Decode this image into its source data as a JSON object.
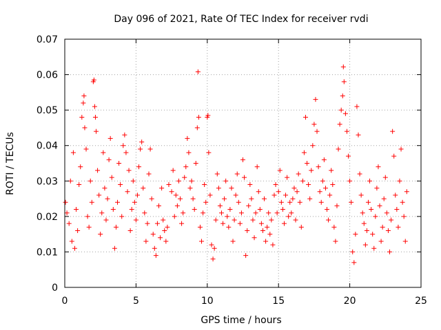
{
  "chart_data": {
    "type": "scatter",
    "title": "Day 096 of 2021, Rate Of TEC Index for receiver rvdi",
    "xlabel": "GPS time / hours",
    "ylabel": "ROTI / TECUs",
    "xlim": [
      0,
      25
    ],
    "ylim": [
      0,
      0.07
    ],
    "x_ticks": [
      "0",
      "5",
      "10",
      "15",
      "20",
      "25"
    ],
    "y_ticks": [
      "0",
      "0.01",
      "0.02",
      "0.03",
      "0.04",
      "0.05",
      "0.06",
      "0.07"
    ],
    "grid": true,
    "marker": "+",
    "color": "#ff0000",
    "series": [
      {
        "name": "ROTI",
        "points": [
          [
            0.05,
            0.024
          ],
          [
            0.15,
            0.021
          ],
          [
            0.3,
            0.018
          ],
          [
            0.4,
            0.03
          ],
          [
            0.5,
            0.013
          ],
          [
            0.6,
            0.038
          ],
          [
            0.7,
            0.011
          ],
          [
            0.8,
            0.022
          ],
          [
            0.9,
            0.016
          ],
          [
            1.0,
            0.029
          ],
          [
            1.1,
            0.034
          ],
          [
            1.2,
            0.048
          ],
          [
            1.3,
            0.052
          ],
          [
            1.35,
            0.054
          ],
          [
            1.4,
            0.045
          ],
          [
            1.5,
            0.039
          ],
          [
            1.6,
            0.02
          ],
          [
            1.7,
            0.017
          ],
          [
            1.8,
            0.03
          ],
          [
            1.9,
            0.024
          ],
          [
            2.0,
            0.058
          ],
          [
            2.05,
            0.0585
          ],
          [
            2.1,
            0.051
          ],
          [
            2.15,
            0.048
          ],
          [
            2.2,
            0.044
          ],
          [
            2.3,
            0.033
          ],
          [
            2.4,
            0.026
          ],
          [
            2.5,
            0.015
          ],
          [
            2.6,
            0.021
          ],
          [
            2.7,
            0.038
          ],
          [
            2.8,
            0.028
          ],
          [
            2.9,
            0.019
          ],
          [
            3.0,
            0.025
          ],
          [
            3.1,
            0.036
          ],
          [
            3.2,
            0.042
          ],
          [
            3.3,
            0.031
          ],
          [
            3.4,
            0.022
          ],
          [
            3.5,
            0.011
          ],
          [
            3.6,
            0.017
          ],
          [
            3.7,
            0.024
          ],
          [
            3.8,
            0.035
          ],
          [
            3.9,
            0.029
          ],
          [
            4.0,
            0.02
          ],
          [
            4.1,
            0.04
          ],
          [
            4.2,
            0.043
          ],
          [
            4.3,
            0.038
          ],
          [
            4.4,
            0.027
          ],
          [
            4.5,
            0.033
          ],
          [
            4.6,
            0.016
          ],
          [
            4.7,
            0.022
          ],
          [
            4.8,
            0.03
          ],
          [
            4.9,
            0.024
          ],
          [
            5.0,
            0.019
          ],
          [
            5.1,
            0.026
          ],
          [
            5.2,
            0.034
          ],
          [
            5.3,
            0.039
          ],
          [
            5.4,
            0.041
          ],
          [
            5.5,
            0.028
          ],
          [
            5.6,
            0.021
          ],
          [
            5.7,
            0.013
          ],
          [
            5.8,
            0.018
          ],
          [
            5.9,
            0.032
          ],
          [
            6.0,
            0.039
          ],
          [
            6.1,
            0.025
          ],
          [
            6.2,
            0.015
          ],
          [
            6.3,
            0.011
          ],
          [
            6.4,
            0.009
          ],
          [
            6.5,
            0.018
          ],
          [
            6.6,
            0.023
          ],
          [
            6.7,
            0.014
          ],
          [
            6.8,
            0.028
          ],
          [
            6.9,
            0.019
          ],
          [
            7.0,
            0.016
          ],
          [
            7.1,
            0.013
          ],
          [
            7.2,
            0.017
          ],
          [
            7.3,
            0.029
          ],
          [
            7.5,
            0.027
          ],
          [
            7.6,
            0.033
          ],
          [
            7.7,
            0.02
          ],
          [
            7.8,
            0.026
          ],
          [
            7.9,
            0.023
          ],
          [
            8.0,
            0.03
          ],
          [
            8.1,
            0.025
          ],
          [
            8.2,
            0.018
          ],
          [
            8.3,
            0.021
          ],
          [
            8.4,
            0.031
          ],
          [
            8.5,
            0.034
          ],
          [
            8.6,
            0.042
          ],
          [
            8.7,
            0.038
          ],
          [
            8.8,
            0.028
          ],
          [
            8.9,
            0.03
          ],
          [
            9.0,
            0.025
          ],
          [
            9.1,
            0.022
          ],
          [
            9.2,
            0.035
          ],
          [
            9.3,
            0.045
          ],
          [
            9.35,
            0.0608
          ],
          [
            9.4,
            0.048
          ],
          [
            9.5,
            0.017
          ],
          [
            9.6,
            0.013
          ],
          [
            9.7,
            0.021
          ],
          [
            9.8,
            0.029
          ],
          [
            9.9,
            0.024
          ],
          [
            10.0,
            0.048
          ],
          [
            10.05,
            0.0485
          ],
          [
            10.1,
            0.038
          ],
          [
            10.2,
            0.026
          ],
          [
            10.3,
            0.012
          ],
          [
            10.4,
            0.008
          ],
          [
            10.5,
            0.011
          ],
          [
            10.6,
            0.019
          ],
          [
            10.7,
            0.032
          ],
          [
            10.8,
            0.028
          ],
          [
            10.9,
            0.023
          ],
          [
            11.0,
            0.021
          ],
          [
            11.1,
            0.018
          ],
          [
            11.2,
            0.025
          ],
          [
            11.3,
            0.03
          ],
          [
            11.4,
            0.02
          ],
          [
            11.5,
            0.017
          ],
          [
            11.6,
            0.022
          ],
          [
            11.7,
            0.028
          ],
          [
            11.8,
            0.013
          ],
          [
            11.9,
            0.019
          ],
          [
            12.0,
            0.026
          ],
          [
            12.1,
            0.032
          ],
          [
            12.2,
            0.024
          ],
          [
            12.3,
            0.018
          ],
          [
            12.4,
            0.021
          ],
          [
            12.5,
            0.036
          ],
          [
            12.6,
            0.031
          ],
          [
            12.7,
            0.009
          ],
          [
            12.8,
            0.016
          ],
          [
            12.9,
            0.023
          ],
          [
            13.0,
            0.029
          ],
          [
            13.1,
            0.025
          ],
          [
            13.2,
            0.019
          ],
          [
            13.3,
            0.014
          ],
          [
            13.4,
            0.021
          ],
          [
            13.5,
            0.034
          ],
          [
            13.6,
            0.027
          ],
          [
            13.7,
            0.022
          ],
          [
            13.8,
            0.018
          ],
          [
            13.9,
            0.016
          ],
          [
            14.0,
            0.025
          ],
          [
            14.1,
            0.013
          ],
          [
            14.2,
            0.017
          ],
          [
            14.3,
            0.021
          ],
          [
            14.4,
            0.015
          ],
          [
            14.5,
            0.019
          ],
          [
            14.6,
            0.012
          ],
          [
            14.7,
            0.026
          ],
          [
            14.8,
            0.029
          ],
          [
            14.9,
            0.021
          ],
          [
            15.0,
            0.027
          ],
          [
            15.1,
            0.033
          ],
          [
            15.2,
            0.024
          ],
          [
            15.3,
            0.022
          ],
          [
            15.4,
            0.018
          ],
          [
            15.5,
            0.026
          ],
          [
            15.6,
            0.031
          ],
          [
            15.7,
            0.02
          ],
          [
            15.8,
            0.024
          ],
          [
            15.9,
            0.021
          ],
          [
            16.0,
            0.025
          ],
          [
            16.1,
            0.028
          ],
          [
            16.2,
            0.019
          ],
          [
            16.3,
            0.027
          ],
          [
            16.4,
            0.032
          ],
          [
            16.5,
            0.024
          ],
          [
            16.6,
            0.017
          ],
          [
            16.7,
            0.03
          ],
          [
            16.8,
            0.038
          ],
          [
            16.9,
            0.048
          ],
          [
            17.0,
            0.035
          ],
          [
            17.1,
            0.029
          ],
          [
            17.2,
            0.025
          ],
          [
            17.3,
            0.033
          ],
          [
            17.4,
            0.04
          ],
          [
            17.5,
            0.046
          ],
          [
            17.6,
            0.053
          ],
          [
            17.7,
            0.044
          ],
          [
            17.8,
            0.034
          ],
          [
            17.9,
            0.027
          ],
          [
            18.0,
            0.024
          ],
          [
            18.1,
            0.03
          ],
          [
            18.2,
            0.036
          ],
          [
            18.3,
            0.028
          ],
          [
            18.4,
            0.022
          ],
          [
            18.5,
            0.019
          ],
          [
            18.6,
            0.026
          ],
          [
            18.7,
            0.033
          ],
          [
            18.8,
            0.029
          ],
          [
            18.9,
            0.017
          ],
          [
            19.0,
            0.013
          ],
          [
            19.1,
            0.023
          ],
          [
            19.2,
            0.039
          ],
          [
            19.3,
            0.046
          ],
          [
            19.4,
            0.05
          ],
          [
            19.5,
            0.054
          ],
          [
            19.55,
            0.0622
          ],
          [
            19.6,
            0.058
          ],
          [
            19.7,
            0.049
          ],
          [
            19.8,
            0.044
          ],
          [
            19.9,
            0.037
          ],
          [
            20.0,
            0.03
          ],
          [
            20.1,
            0.024
          ],
          [
            20.2,
            0.01
          ],
          [
            20.3,
            0.007
          ],
          [
            20.4,
            0.015
          ],
          [
            20.5,
            0.051
          ],
          [
            20.6,
            0.043
          ],
          [
            20.7,
            0.032
          ],
          [
            20.8,
            0.026
          ],
          [
            20.9,
            0.021
          ],
          [
            21.0,
            0.018
          ],
          [
            21.1,
            0.012
          ],
          [
            21.2,
            0.016
          ],
          [
            21.3,
            0.024
          ],
          [
            21.4,
            0.03
          ],
          [
            21.5,
            0.022
          ],
          [
            21.6,
            0.015
          ],
          [
            21.7,
            0.011
          ],
          [
            21.8,
            0.02
          ],
          [
            21.9,
            0.028
          ],
          [
            22.0,
            0.034
          ],
          [
            22.1,
            0.023
          ],
          [
            22.2,
            0.013
          ],
          [
            22.3,
            0.017
          ],
          [
            22.4,
            0.025
          ],
          [
            22.5,
            0.031
          ],
          [
            22.6,
            0.021
          ],
          [
            22.7,
            0.016
          ],
          [
            22.8,
            0.01
          ],
          [
            22.9,
            0.019
          ],
          [
            23.0,
            0.044
          ],
          [
            23.1,
            0.037
          ],
          [
            23.2,
            0.026
          ],
          [
            23.3,
            0.022
          ],
          [
            23.4,
            0.017
          ],
          [
            23.5,
            0.03
          ],
          [
            23.6,
            0.039
          ],
          [
            23.7,
            0.024
          ],
          [
            23.8,
            0.02
          ],
          [
            23.9,
            0.013
          ],
          [
            24.0,
            0.027
          ]
        ]
      }
    ]
  }
}
